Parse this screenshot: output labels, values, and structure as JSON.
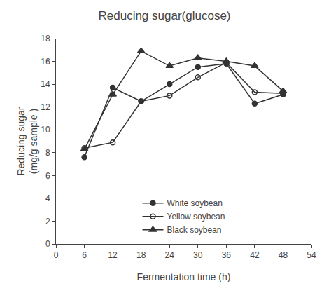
{
  "chart_data": {
    "type": "line",
    "title": "Reducing sugar(glucose)",
    "xlabel": "Fermentation time (h)",
    "ylabel": "Reducing sugar\n(mg/g sample )",
    "x": [
      6,
      12,
      18,
      24,
      30,
      36,
      42,
      48
    ],
    "series": [
      {
        "name": "White soybean",
        "color": "#333333",
        "marker": "circle",
        "values": [
          7.6,
          13.7,
          12.5,
          14.0,
          15.5,
          15.8,
          12.3,
          13.1
        ]
      },
      {
        "name": "Yellow soybean",
        "color": "#333333",
        "marker": "open-circle",
        "values": [
          8.4,
          8.9,
          12.5,
          13.0,
          14.6,
          15.9,
          13.3,
          13.2
        ]
      },
      {
        "name": "Black soybean",
        "color": "#333333",
        "marker": "triangle",
        "values": [
          8.3,
          13.1,
          16.9,
          15.6,
          16.3,
          16.0,
          15.6,
          13.4
        ]
      }
    ],
    "xlim": [
      0,
      54
    ],
    "ylim": [
      0,
      18
    ],
    "xticks": [
      0,
      6,
      12,
      18,
      24,
      30,
      36,
      42,
      48,
      54
    ],
    "yticks": [
      0,
      2,
      4,
      6,
      8,
      10,
      12,
      14,
      16,
      18
    ],
    "grid": false,
    "legend": "lower center"
  }
}
